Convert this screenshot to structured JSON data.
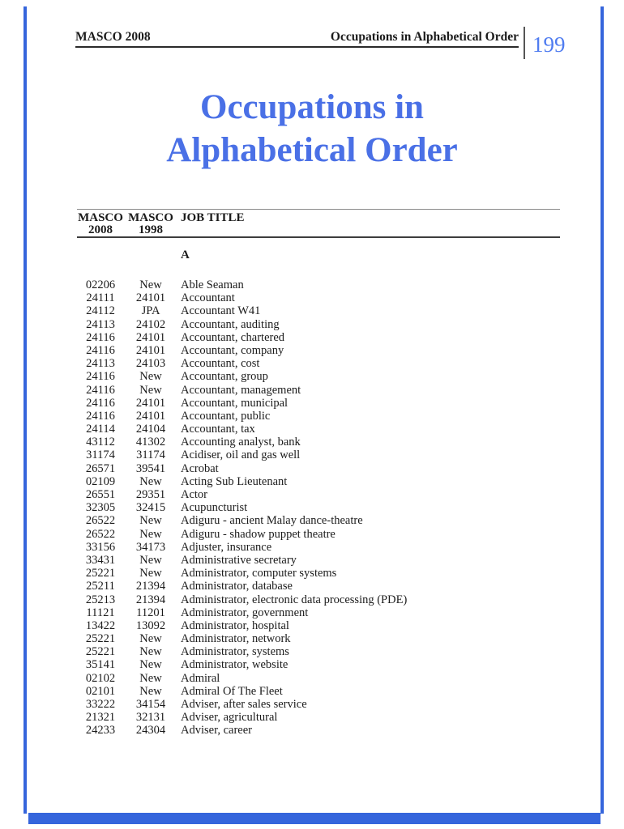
{
  "colors": {
    "frame_blue": "#3565dc",
    "title_blue": "#4a70e6",
    "page_number_blue": "#4f7cf0"
  },
  "header": {
    "left_title": "MASCO 2008",
    "right_title": "Occupations in Alphabetical Order",
    "page_number": "199"
  },
  "title": {
    "line1": "Occupations in",
    "line2": "Alphabetical Order"
  },
  "table": {
    "columns": [
      {
        "line1": "MASCO",
        "line2": "2008"
      },
      {
        "line1": "MASCO",
        "line2": "1998"
      },
      {
        "line1": "JOB TITLE",
        "line2": ""
      }
    ],
    "section_letter": "A",
    "rows": [
      {
        "masco2008": "02206",
        "masco1998": "New",
        "job_title": "Able Seaman"
      },
      {
        "masco2008": "24111",
        "masco1998": "24101",
        "job_title": "Accountant"
      },
      {
        "masco2008": "24112",
        "masco1998": "JPA",
        "job_title": "Accountant W41"
      },
      {
        "masco2008": "24113",
        "masco1998": "24102",
        "job_title": "Accountant, auditing"
      },
      {
        "masco2008": "24116",
        "masco1998": "24101",
        "job_title": "Accountant, chartered"
      },
      {
        "masco2008": "24116",
        "masco1998": "24101",
        "job_title": "Accountant, company"
      },
      {
        "masco2008": "24113",
        "masco1998": "24103",
        "job_title": "Accountant, cost"
      },
      {
        "masco2008": "24116",
        "masco1998": "New",
        "job_title": "Accountant, group"
      },
      {
        "masco2008": "24116",
        "masco1998": "New",
        "job_title": "Accountant, management"
      },
      {
        "masco2008": "24116",
        "masco1998": "24101",
        "job_title": "Accountant, municipal"
      },
      {
        "masco2008": "24116",
        "masco1998": "24101",
        "job_title": "Accountant, public"
      },
      {
        "masco2008": "24114",
        "masco1998": "24104",
        "job_title": "Accountant, tax"
      },
      {
        "masco2008": "43112",
        "masco1998": "41302",
        "job_title": "Accounting analyst, bank"
      },
      {
        "masco2008": "31174",
        "masco1998": "31174",
        "job_title": "Acidiser, oil and gas well"
      },
      {
        "masco2008": "26571",
        "masco1998": "39541",
        "job_title": "Acrobat"
      },
      {
        "masco2008": "02109",
        "masco1998": "New",
        "job_title": "Acting Sub Lieutenant"
      },
      {
        "masco2008": "26551",
        "masco1998": "29351",
        "job_title": "Actor"
      },
      {
        "masco2008": "32305",
        "masco1998": "32415",
        "job_title": "Acupuncturist"
      },
      {
        "masco2008": "26522",
        "masco1998": "New",
        "job_title": "Adiguru - ancient Malay dance-theatre"
      },
      {
        "masco2008": "26522",
        "masco1998": "New",
        "job_title": "Adiguru - shadow puppet theatre"
      },
      {
        "masco2008": "33156",
        "masco1998": "34173",
        "job_title": "Adjuster, insurance"
      },
      {
        "masco2008": "33431",
        "masco1998": "New",
        "job_title": "Administrative secretary"
      },
      {
        "masco2008": "25221",
        "masco1998": "New",
        "job_title": "Administrator, computer systems"
      },
      {
        "masco2008": "25211",
        "masco1998": "21394",
        "job_title": "Administrator, database"
      },
      {
        "masco2008": "25213",
        "masco1998": "21394",
        "job_title": "Administrator, electronic data processing (PDE)"
      },
      {
        "masco2008": "11121",
        "masco1998": "11201",
        "job_title": "Administrator, government"
      },
      {
        "masco2008": "13422",
        "masco1998": "13092",
        "job_title": "Administrator, hospital"
      },
      {
        "masco2008": "25221",
        "masco1998": "New",
        "job_title": "Administrator, network"
      },
      {
        "masco2008": "25221",
        "masco1998": "New",
        "job_title": "Administrator, systems"
      },
      {
        "masco2008": "35141",
        "masco1998": "New",
        "job_title": "Administrator, website"
      },
      {
        "masco2008": "02102",
        "masco1998": "New",
        "job_title": "Admiral"
      },
      {
        "masco2008": "02101",
        "masco1998": "New",
        "job_title": "Admiral Of The Fleet"
      },
      {
        "masco2008": "33222",
        "masco1998": "34154",
        "job_title": "Adviser, after sales service"
      },
      {
        "masco2008": "21321",
        "masco1998": "32131",
        "job_title": "Adviser, agricultural"
      },
      {
        "masco2008": "24233",
        "masco1998": "24304",
        "job_title": "Adviser, career"
      }
    ]
  }
}
